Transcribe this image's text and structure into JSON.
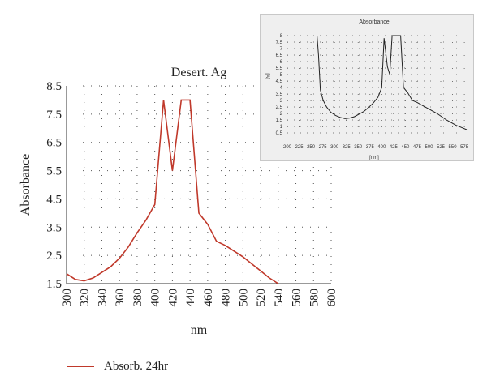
{
  "chart_data": [
    {
      "type": "line",
      "title": "Desert. Ag",
      "xlabel": "nm",
      "ylabel": "Absorbance",
      "xlim": [
        300,
        600
      ],
      "ylim": [
        1.5,
        8.5
      ],
      "x_ticks": [
        "300",
        "320",
        "340",
        "360",
        "380",
        "400",
        "420",
        "440",
        "460",
        "480",
        "500",
        "520",
        "540",
        "560",
        "580",
        "600"
      ],
      "y_ticks": [
        "1.5",
        "2.5",
        "3.5",
        "4.5",
        "5.5",
        "6.5",
        "7.5",
        "8.5"
      ],
      "grid": "dotted",
      "legend_position": "bottom-left",
      "series": [
        {
          "name": "Absorb. 24hr",
          "color": "#c0392b",
          "x": [
            300,
            310,
            320,
            330,
            340,
            350,
            360,
            370,
            380,
            390,
            400,
            410,
            420,
            430,
            440,
            450,
            460,
            470,
            480,
            490,
            500,
            510,
            520,
            530,
            540
          ],
          "y": [
            1.85,
            1.65,
            1.6,
            1.7,
            1.9,
            2.1,
            2.4,
            2.8,
            3.3,
            3.75,
            4.3,
            8.0,
            5.5,
            8.0,
            8.0,
            4.0,
            3.6,
            3.0,
            2.85,
            2.65,
            2.45,
            2.2,
            1.95,
            1.7,
            1.5
          ]
        }
      ]
    },
    {
      "type": "line",
      "title": "Absorbance",
      "xlabel": "[nm]",
      "ylabel": "[A]",
      "xlim": [
        200,
        580
      ],
      "ylim": [
        0.5,
        8
      ],
      "x_ticks": [
        "200",
        "225",
        "250",
        "275",
        "300",
        "325",
        "350",
        "375",
        "400",
        "425",
        "450",
        "475",
        "500",
        "525",
        "550",
        "575"
      ],
      "y_ticks": [
        "8",
        "7.5",
        "7",
        "6.5",
        "6",
        "5.5",
        "5",
        "4.5",
        "4",
        "3.5",
        "3",
        "2.5",
        "2",
        "1.5",
        "1",
        "0.5"
      ],
      "grid": "dotted",
      "series": [
        {
          "color": "#222222",
          "x": [
            263,
            266,
            270,
            276,
            283,
            292,
            302,
            312,
            322,
            332,
            342,
            352,
            362,
            372,
            382,
            392,
            400,
            405,
            412,
            417,
            422,
            427,
            432,
            440,
            446,
            455,
            465,
            475,
            487,
            497,
            507,
            517,
            527,
            537,
            547,
            557,
            567,
            580
          ],
          "y": [
            8.0,
            6.5,
            3.8,
            3.0,
            2.5,
            2.1,
            1.85,
            1.7,
            1.6,
            1.65,
            1.75,
            1.95,
            2.15,
            2.45,
            2.8,
            3.25,
            4.0,
            7.8,
            5.6,
            5.0,
            8.0,
            8.0,
            8.0,
            8.0,
            4.0,
            3.6,
            3.0,
            2.85,
            2.6,
            2.4,
            2.2,
            2.0,
            1.75,
            1.5,
            1.3,
            1.1,
            0.95,
            0.75
          ]
        }
      ]
    }
  ]
}
